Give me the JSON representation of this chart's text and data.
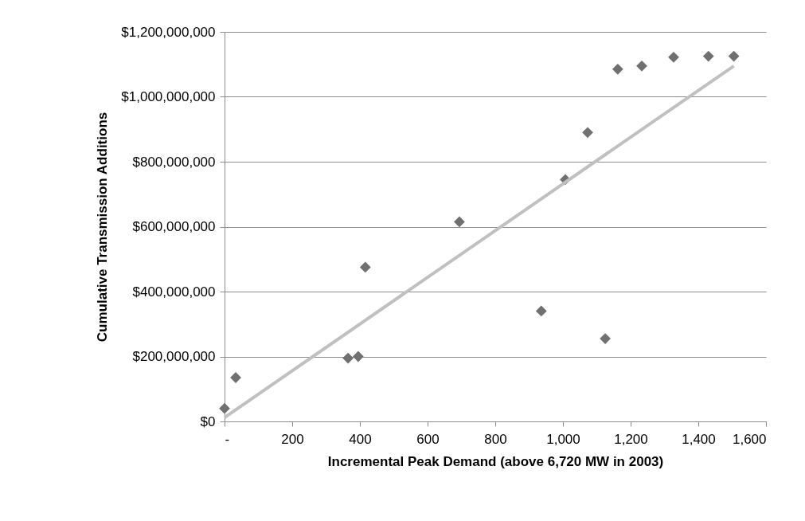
{
  "chart_data": {
    "type": "scatter",
    "xlabel": "Incremental Peak Demand (above 6,720 MW in 2003)",
    "ylabel": "Cumulative Transmission Additions",
    "series": [
      {
        "color": "#707070",
        "marker": "diamond",
        "x": [
          0,
          33,
          365,
          395,
          416,
          694,
          936,
          1007,
          1073,
          1125,
          1162,
          1233,
          1327,
          1430,
          1505
        ],
        "values": [
          40000000,
          135000000,
          195000000,
          200000000,
          475000000,
          615000000,
          340000000,
          745000000,
          890000000,
          255000000,
          1085000000,
          1095000000,
          1122000000,
          1125000000,
          1125000000
        ]
      },
      {
        "type": "line",
        "marker": "none",
        "color": "#c0c0c0",
        "x": [
          0,
          1505
        ],
        "values": [
          12000000,
          1095000000
        ]
      }
    ],
    "xlim": [
      0,
      1600
    ],
    "xticks": [
      {
        "value": 0,
        "label": "-"
      },
      200,
      400,
      600,
      800,
      {
        "value": 1000,
        "label": "1,000"
      },
      {
        "value": 1200,
        "label": "1,200"
      },
      {
        "value": 1400,
        "label": "1,400"
      },
      {
        "value": 1600,
        "label": "1,600"
      }
    ],
    "ylim": [
      0,
      1200000000
    ],
    "yticks": [
      {
        "value": 0,
        "label": "$0"
      },
      {
        "value": 200000000,
        "label": "$200,000,000"
      },
      {
        "value": 400000000,
        "label": "$400,000,000"
      },
      {
        "value": 600000000,
        "label": "$600,000,000"
      },
      {
        "value": 800000000,
        "label": "$800,000,000"
      },
      {
        "value": 1000000000,
        "label": "$1,000,000,000"
      },
      {
        "value": 1200000000,
        "label": "$1,200,000,000"
      }
    ],
    "grid": "y"
  }
}
